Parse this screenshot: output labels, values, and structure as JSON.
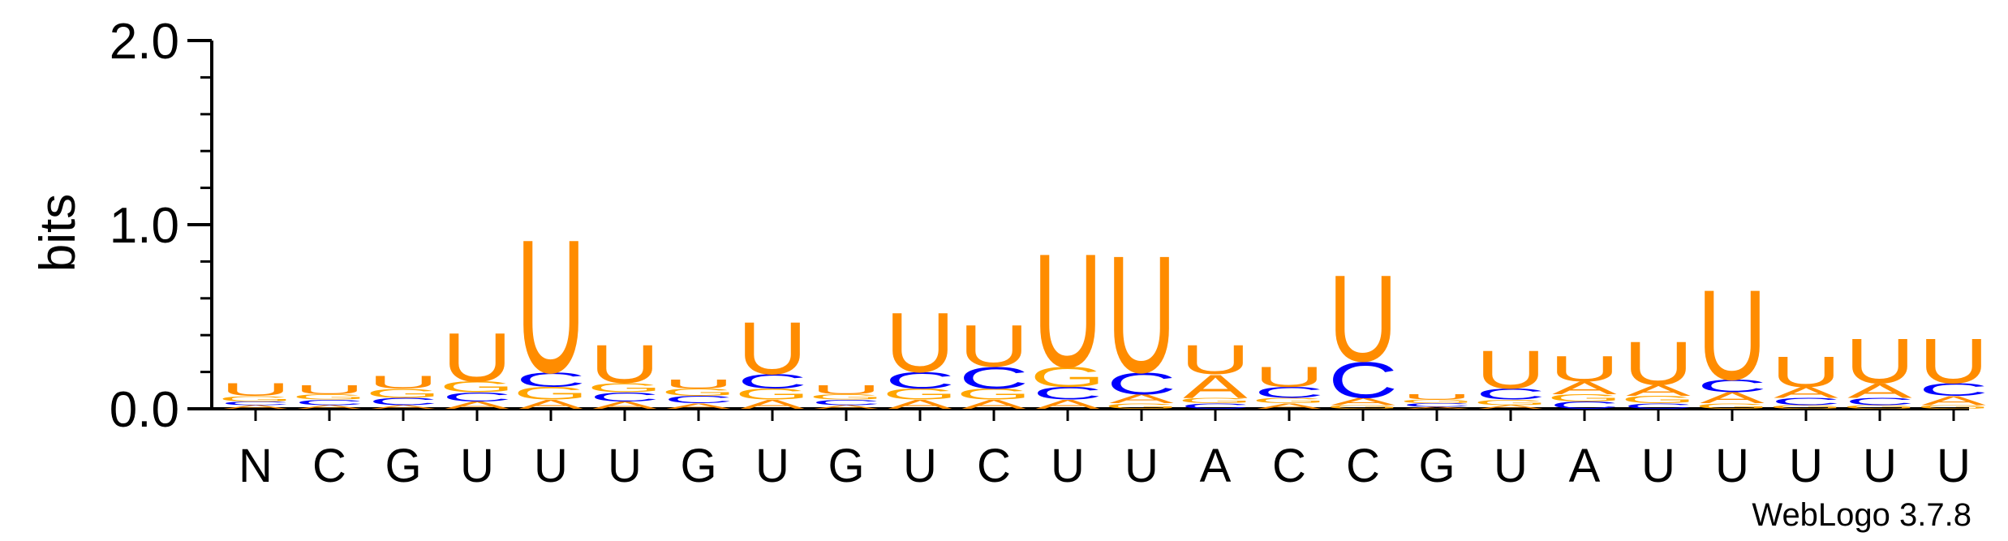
{
  "chart_data": {
    "type": "sequence-logo",
    "ylabel": "bits",
    "ylim": [
      0,
      2.0
    ],
    "yticks": [
      "0.0",
      "1.0",
      "2.0"
    ],
    "positions": [
      "N",
      "C",
      "G",
      "U",
      "U",
      "U",
      "G",
      "U",
      "G",
      "U",
      "C",
      "U",
      "U",
      "A",
      "C",
      "C",
      "G",
      "U",
      "A",
      "U",
      "U",
      "U",
      "U",
      "U"
    ],
    "colors": {
      "U": "#ff8c00",
      "C": "#0000ff",
      "G": "#ffa500",
      "A": "#ff8c00"
    },
    "stacks": [
      {
        "position": "N",
        "letters": [
          {
            "base": "A",
            "bits": 0.02
          },
          {
            "base": "C",
            "bits": 0.02
          },
          {
            "base": "G",
            "bits": 0.03
          },
          {
            "base": "U",
            "bits": 0.07
          }
        ]
      },
      {
        "position": "C",
        "letters": [
          {
            "base": "A",
            "bits": 0.02
          },
          {
            "base": "C",
            "bits": 0.03
          },
          {
            "base": "G",
            "bits": 0.03
          },
          {
            "base": "U",
            "bits": 0.05
          }
        ]
      },
      {
        "position": "G",
        "letters": [
          {
            "base": "A",
            "bits": 0.02
          },
          {
            "base": "C",
            "bits": 0.04
          },
          {
            "base": "G",
            "bits": 0.05
          },
          {
            "base": "U",
            "bits": 0.07
          }
        ]
      },
      {
        "position": "U",
        "letters": [
          {
            "base": "A",
            "bits": 0.04
          },
          {
            "base": "C",
            "bits": 0.05
          },
          {
            "base": "G",
            "bits": 0.06
          },
          {
            "base": "U",
            "bits": 0.27
          }
        ]
      },
      {
        "position": "U",
        "letters": [
          {
            "base": "A",
            "bits": 0.05
          },
          {
            "base": "G",
            "bits": 0.07
          },
          {
            "base": "C",
            "bits": 0.08
          },
          {
            "base": "U",
            "bits": 0.74
          }
        ]
      },
      {
        "position": "U",
        "letters": [
          {
            "base": "A",
            "bits": 0.04
          },
          {
            "base": "C",
            "bits": 0.05
          },
          {
            "base": "G",
            "bits": 0.05
          },
          {
            "base": "U",
            "bits": 0.21
          }
        ]
      },
      {
        "position": "G",
        "letters": [
          {
            "base": "A",
            "bits": 0.03
          },
          {
            "base": "C",
            "bits": 0.04
          },
          {
            "base": "G",
            "bits": 0.04
          },
          {
            "base": "U",
            "bits": 0.05
          }
        ]
      },
      {
        "position": "U",
        "letters": [
          {
            "base": "A",
            "bits": 0.05
          },
          {
            "base": "G",
            "bits": 0.06
          },
          {
            "base": "C",
            "bits": 0.08
          },
          {
            "base": "U",
            "bits": 0.29
          }
        ]
      },
      {
        "position": "G",
        "letters": [
          {
            "base": "A",
            "bits": 0.02
          },
          {
            "base": "C",
            "bits": 0.03
          },
          {
            "base": "G",
            "bits": 0.03
          },
          {
            "base": "U",
            "bits": 0.05
          }
        ]
      },
      {
        "position": "U",
        "letters": [
          {
            "base": "A",
            "bits": 0.05
          },
          {
            "base": "G",
            "bits": 0.06
          },
          {
            "base": "C",
            "bits": 0.09
          },
          {
            "base": "U",
            "bits": 0.33
          }
        ]
      },
      {
        "position": "C",
        "letters": [
          {
            "base": "A",
            "bits": 0.05
          },
          {
            "base": "G",
            "bits": 0.06
          },
          {
            "base": "C",
            "bits": 0.12
          },
          {
            "base": "U",
            "bits": 0.23
          }
        ]
      },
      {
        "position": "U",
        "letters": [
          {
            "base": "A",
            "bits": 0.05
          },
          {
            "base": "C",
            "bits": 0.07
          },
          {
            "base": "G",
            "bits": 0.11
          },
          {
            "base": "U",
            "bits": 0.63
          }
        ]
      },
      {
        "position": "U",
        "letters": [
          {
            "base": "G",
            "bits": 0.03
          },
          {
            "base": "A",
            "bits": 0.05
          },
          {
            "base": "C",
            "bits": 0.12
          },
          {
            "base": "U",
            "bits": 0.65
          }
        ]
      },
      {
        "position": "A",
        "letters": [
          {
            "base": "C",
            "bits": 0.03
          },
          {
            "base": "G",
            "bits": 0.03
          },
          {
            "base": "A",
            "bits": 0.13
          },
          {
            "base": "U",
            "bits": 0.16
          }
        ]
      },
      {
        "position": "C",
        "letters": [
          {
            "base": "A",
            "bits": 0.03
          },
          {
            "base": "G",
            "bits": 0.03
          },
          {
            "base": "C",
            "bits": 0.06
          },
          {
            "base": "U",
            "bits": 0.11
          }
        ]
      },
      {
        "position": "C",
        "letters": [
          {
            "base": "G",
            "bits": 0.02
          },
          {
            "base": "A",
            "bits": 0.04
          },
          {
            "base": "C",
            "bits": 0.2
          },
          {
            "base": "U",
            "bits": 0.48
          }
        ]
      },
      {
        "position": "G",
        "letters": [
          {
            "base": "A",
            "bits": 0.01
          },
          {
            "base": "C",
            "bits": 0.02
          },
          {
            "base": "G",
            "bits": 0.02
          },
          {
            "base": "U",
            "bits": 0.03
          }
        ]
      },
      {
        "position": "U",
        "letters": [
          {
            "base": "A",
            "bits": 0.02
          },
          {
            "base": "G",
            "bits": 0.03
          },
          {
            "base": "C",
            "bits": 0.06
          },
          {
            "base": "U",
            "bits": 0.21
          }
        ]
      },
      {
        "position": "A",
        "letters": [
          {
            "base": "C",
            "bits": 0.04
          },
          {
            "base": "G",
            "bits": 0.04
          },
          {
            "base": "A",
            "bits": 0.07
          },
          {
            "base": "U",
            "bits": 0.14
          }
        ]
      },
      {
        "position": "U",
        "letters": [
          {
            "base": "C",
            "bits": 0.03
          },
          {
            "base": "G",
            "bits": 0.04
          },
          {
            "base": "A",
            "bits": 0.06
          },
          {
            "base": "U",
            "bits": 0.24
          }
        ]
      },
      {
        "position": "U",
        "letters": [
          {
            "base": "G",
            "bits": 0.03
          },
          {
            "base": "A",
            "bits": 0.06
          },
          {
            "base": "C",
            "bits": 0.07
          },
          {
            "base": "U",
            "bits": 0.5
          }
        ]
      },
      {
        "position": "U",
        "letters": [
          {
            "base": "G",
            "bits": 0.02
          },
          {
            "base": "C",
            "bits": 0.04
          },
          {
            "base": "A",
            "bits": 0.06
          },
          {
            "base": "U",
            "bits": 0.17
          }
        ]
      },
      {
        "position": "U",
        "letters": [
          {
            "base": "G",
            "bits": 0.02
          },
          {
            "base": "C",
            "bits": 0.04
          },
          {
            "base": "A",
            "bits": 0.08
          },
          {
            "base": "U",
            "bits": 0.25
          }
        ]
      },
      {
        "position": "U",
        "letters": [
          {
            "base": "G",
            "bits": 0.02
          },
          {
            "base": "A",
            "bits": 0.05
          },
          {
            "base": "C",
            "bits": 0.07
          },
          {
            "base": "U",
            "bits": 0.25
          }
        ]
      }
    ]
  },
  "footer": {
    "credit": "WebLogo 3.7.8"
  }
}
